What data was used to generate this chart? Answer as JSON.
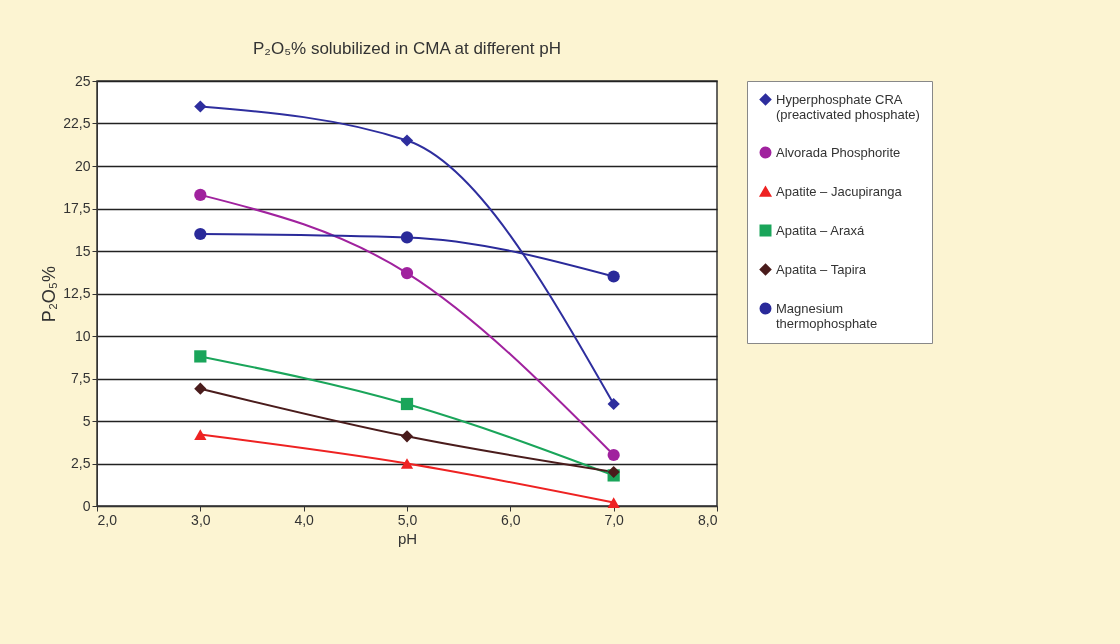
{
  "chart_data": {
    "type": "line",
    "title": "P₂O₅% solubilized in CMA at different pH",
    "xlabel": "pH",
    "ylabel": "P₂O₅%",
    "x": [
      3,
      5,
      7
    ],
    "series": [
      {
        "name": "Hyperphosphate CRA (preactivated phosphate)",
        "color": "#2e2e9e",
        "marker": "diamond",
        "values": [
          23.5,
          21.5,
          6.0
        ]
      },
      {
        "name": "Alvorada Phosphorite",
        "color": "#a0229e",
        "marker": "circle",
        "values": [
          18.3,
          13.7,
          3.0
        ]
      },
      {
        "name": "Apatite – Jacupiranga",
        "color": "#ee2222",
        "marker": "triangle",
        "values": [
          4.2,
          2.5,
          0.2
        ]
      },
      {
        "name": "Apatita – Araxá",
        "color": "#1aa55a",
        "marker": "square",
        "values": [
          8.8,
          6.0,
          1.8
        ]
      },
      {
        "name": "Apatita – Tapira",
        "color": "#4a1c1c",
        "marker": "diamond",
        "values": [
          6.9,
          4.1,
          2.0
        ]
      },
      {
        "name": "Magnesium thermophosphate",
        "color": "#2a2a9a",
        "marker": "circle",
        "values": [
          16.0,
          15.8,
          13.5
        ]
      }
    ],
    "xlim": [
      2,
      8
    ],
    "xticks": [
      {
        "value": 2,
        "label": "2,0"
      },
      {
        "value": 3,
        "label": "3,0"
      },
      {
        "value": 4,
        "label": "4,0"
      },
      {
        "value": 5,
        "label": "5,0"
      },
      {
        "value": 6,
        "label": "6,0"
      },
      {
        "value": 7,
        "label": "7,0"
      },
      {
        "value": 8,
        "label": "8,0"
      }
    ],
    "ylim": [
      0,
      25
    ],
    "yticks": [
      0,
      {
        "value": 2.5,
        "label": "2,5"
      },
      5,
      {
        "value": 7.5,
        "label": "7,5"
      },
      10,
      {
        "value": 12.5,
        "label": "12,5"
      },
      15,
      {
        "value": 17.5,
        "label": "17,5"
      },
      20,
      {
        "value": 22.5,
        "label": "22,5"
      },
      25
    ],
    "grid": "y",
    "legend": "right",
    "line_style": "solid"
  }
}
